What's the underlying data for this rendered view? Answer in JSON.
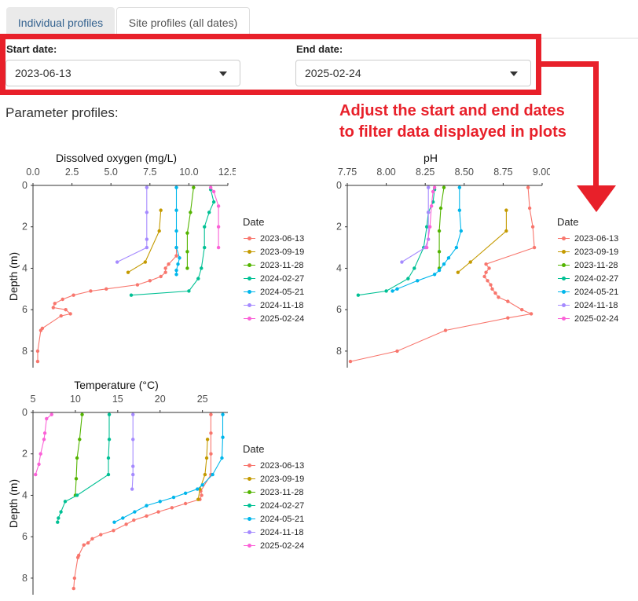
{
  "tabs": [
    {
      "label": "Individual profiles",
      "active": false
    },
    {
      "label": "Site profiles (all dates)",
      "active": true
    }
  ],
  "filters": {
    "start_label": "Start date:",
    "start_value": "2023-06-13",
    "end_label": "End date:",
    "end_value": "2025-02-24"
  },
  "section_title": "Parameter profiles:",
  "annotation": {
    "line1": "Adjust the start and end dates",
    "line2": "to filter data displayed in plots",
    "color": "#e8202a"
  },
  "legend": {
    "title": "Date",
    "entries": [
      {
        "label": "2023-06-13",
        "color": "#F8766D"
      },
      {
        "label": "2023-09-19",
        "color": "#C49A00"
      },
      {
        "label": "2023-11-28",
        "color": "#53B400"
      },
      {
        "label": "2024-02-27",
        "color": "#00C094"
      },
      {
        "label": "2024-05-21",
        "color": "#00B6EB"
      },
      {
        "label": "2024-11-18",
        "color": "#A58AFF"
      },
      {
        "label": "2025-02-24",
        "color": "#FB61D7"
      }
    ]
  },
  "chart_data": [
    {
      "type": "line",
      "title": "Dissolved oxygen (mg/L)",
      "xlabel": "",
      "ylabel": "Depth (m)",
      "xlim": [
        0,
        12.5
      ],
      "ylim": [
        0,
        8.8
      ],
      "xticks": [
        "0.0",
        "2.5",
        "5.0",
        "7.5",
        "10.0",
        "12.5"
      ],
      "yticks": [
        "0",
        "2",
        "4",
        "6",
        "8"
      ],
      "x_axis_position": "top",
      "y_reversed": true,
      "grid": false,
      "legend_position": "right",
      "series": [
        {
          "name": "2023-06-13",
          "points": [
            [
              9.2,
              3.0
            ],
            [
              9.2,
              3.4
            ],
            [
              8.7,
              3.8
            ],
            [
              8.5,
              4.0
            ],
            [
              8.5,
              4.2
            ],
            [
              8.2,
              4.4
            ],
            [
              7.5,
              4.6
            ],
            [
              6.7,
              4.8
            ],
            [
              4.7,
              5.0
            ],
            [
              3.7,
              5.1
            ],
            [
              2.6,
              5.3
            ],
            [
              1.9,
              5.5
            ],
            [
              1.4,
              5.7
            ],
            [
              1.3,
              5.9
            ],
            [
              2.1,
              6.0
            ],
            [
              2.4,
              6.2
            ],
            [
              1.8,
              6.3
            ],
            [
              0.6,
              6.9
            ],
            [
              0.5,
              7.0
            ],
            [
              0.3,
              8.0
            ],
            [
              0.3,
              8.5
            ]
          ]
        },
        {
          "name": "2023-09-19",
          "points": [
            [
              8.2,
              1.2
            ],
            [
              8.1,
              2.2
            ],
            [
              7.2,
              3.7
            ],
            [
              6.1,
              4.2
            ]
          ]
        },
        {
          "name": "2023-11-28",
          "points": [
            [
              10.3,
              0.1
            ],
            [
              10.1,
              1.3
            ],
            [
              9.9,
              2.3
            ],
            [
              9.9,
              3.2
            ],
            [
              9.9,
              4.0
            ]
          ]
        },
        {
          "name": "2024-02-27",
          "points": [
            [
              11.4,
              0.2
            ],
            [
              11.6,
              0.8
            ],
            [
              11.3,
              1.3
            ],
            [
              11.0,
              2.0
            ],
            [
              11.0,
              3.0
            ],
            [
              10.8,
              4.0
            ],
            [
              10.6,
              4.5
            ],
            [
              10.0,
              5.1
            ],
            [
              6.3,
              5.3
            ]
          ]
        },
        {
          "name": "2024-05-21",
          "points": [
            [
              9.2,
              0.1
            ],
            [
              9.2,
              1.2
            ],
            [
              9.2,
              2.2
            ],
            [
              9.2,
              3.0
            ],
            [
              9.4,
              3.5
            ],
            [
              9.3,
              3.8
            ],
            [
              9.2,
              4.1
            ],
            [
              9.2,
              4.3
            ]
          ]
        },
        {
          "name": "2024-11-18",
          "points": [
            [
              7.3,
              0.1
            ],
            [
              7.3,
              1.3
            ],
            [
              7.3,
              2.6
            ],
            [
              7.3,
              3.0
            ],
            [
              5.4,
              3.7
            ]
          ]
        },
        {
          "name": "2025-02-24",
          "points": [
            [
              11.4,
              0.1
            ],
            [
              11.6,
              0.3
            ],
            [
              11.9,
              1.0
            ],
            [
              11.9,
              2.0
            ],
            [
              11.9,
              3.0
            ]
          ]
        }
      ]
    },
    {
      "type": "line",
      "title": "pH",
      "xlabel": "",
      "ylabel": "",
      "xlim": [
        7.75,
        9.0
      ],
      "ylim": [
        0,
        8.8
      ],
      "xticks": [
        "7.75",
        "8.00",
        "8.25",
        "8.50",
        "8.75",
        "9.00"
      ],
      "yticks": [
        "0",
        "2",
        "4",
        "6",
        "8"
      ],
      "x_axis_position": "top",
      "y_reversed": true,
      "grid": false,
      "legend_position": "right",
      "series": [
        {
          "name": "2023-06-13",
          "points": [
            [
              8.91,
              0.1
            ],
            [
              8.92,
              1.1
            ],
            [
              8.94,
              2.0
            ],
            [
              8.95,
              3.0
            ],
            [
              8.64,
              3.8
            ],
            [
              8.66,
              4.0
            ],
            [
              8.64,
              4.2
            ],
            [
              8.63,
              4.4
            ],
            [
              8.65,
              4.6
            ],
            [
              8.67,
              4.8
            ],
            [
              8.68,
              5.0
            ],
            [
              8.7,
              5.2
            ],
            [
              8.72,
              5.4
            ],
            [
              8.78,
              5.6
            ],
            [
              8.87,
              6.0
            ],
            [
              8.93,
              6.2
            ],
            [
              8.78,
              6.4
            ],
            [
              8.38,
              7.0
            ],
            [
              8.07,
              8.0
            ],
            [
              7.77,
              8.5
            ]
          ]
        },
        {
          "name": "2023-09-19",
          "points": [
            [
              8.77,
              1.2
            ],
            [
              8.77,
              2.2
            ],
            [
              8.54,
              3.7
            ],
            [
              8.46,
              4.2
            ]
          ]
        },
        {
          "name": "2023-11-28",
          "points": [
            [
              8.37,
              0.1
            ],
            [
              8.35,
              1.1
            ],
            [
              8.34,
              2.2
            ],
            [
              8.34,
              3.2
            ],
            [
              8.34,
              4.0
            ]
          ]
        },
        {
          "name": "2024-02-27",
          "points": [
            [
              8.31,
              0.2
            ],
            [
              8.3,
              0.8
            ],
            [
              8.27,
              1.3
            ],
            [
              8.26,
              2.0
            ],
            [
              8.24,
              3.0
            ],
            [
              8.18,
              4.0
            ],
            [
              8.14,
              4.5
            ],
            [
              8.0,
              5.1
            ],
            [
              7.82,
              5.3
            ]
          ]
        },
        {
          "name": "2024-05-21",
          "points": [
            [
              8.47,
              0.1
            ],
            [
              8.47,
              1.2
            ],
            [
              8.48,
              2.2
            ],
            [
              8.45,
              3.0
            ],
            [
              8.4,
              3.5
            ],
            [
              8.37,
              3.8
            ],
            [
              8.34,
              4.1
            ],
            [
              8.31,
              4.3
            ],
            [
              8.2,
              4.6
            ],
            [
              8.07,
              5.0
            ],
            [
              8.04,
              5.1
            ]
          ]
        },
        {
          "name": "2024-11-18",
          "points": [
            [
              8.27,
              0.1
            ],
            [
              8.27,
              1.3
            ],
            [
              8.27,
              2.6
            ],
            [
              8.25,
              3.0
            ],
            [
              8.1,
              3.7
            ]
          ]
        },
        {
          "name": "2025-02-24",
          "points": [
            [
              8.31,
              0.1
            ],
            [
              8.3,
              0.3
            ],
            [
              8.29,
              1.0
            ],
            [
              8.28,
              2.0
            ],
            [
              8.26,
              3.0
            ]
          ]
        }
      ]
    },
    {
      "type": "line",
      "title": "Temperature (°C)",
      "xlabel": "",
      "ylabel": "Depth (m)",
      "xlim": [
        5,
        28
      ],
      "ylim": [
        0,
        8.8
      ],
      "xticks": [
        "5",
        "10",
        "15",
        "20",
        "25"
      ],
      "yticks": [
        "0",
        "2",
        "4",
        "6",
        "8"
      ],
      "x_axis_position": "top",
      "y_reversed": true,
      "grid": false,
      "legend_position": "right",
      "series": [
        {
          "name": "2023-06-13",
          "points": [
            [
              26.0,
              0.1
            ],
            [
              26.0,
              1.0
            ],
            [
              26.0,
              2.0
            ],
            [
              26.0,
              3.0
            ],
            [
              24.8,
              3.8
            ],
            [
              24.9,
              4.0
            ],
            [
              24.7,
              4.2
            ],
            [
              23.0,
              4.4
            ],
            [
              21.4,
              4.6
            ],
            [
              19.8,
              4.8
            ],
            [
              18.4,
              5.0
            ],
            [
              16.9,
              5.2
            ],
            [
              16.0,
              5.4
            ],
            [
              14.5,
              5.7
            ],
            [
              13.0,
              5.9
            ],
            [
              12.0,
              6.1
            ],
            [
              11.5,
              6.3
            ],
            [
              11.0,
              6.4
            ],
            [
              10.4,
              6.9
            ],
            [
              10.3,
              7.0
            ],
            [
              9.9,
              8.0
            ],
            [
              9.8,
              8.5
            ]
          ]
        },
        {
          "name": "2023-09-19",
          "points": [
            [
              25.6,
              1.3
            ],
            [
              25.5,
              2.2
            ],
            [
              25.3,
              3.0
            ],
            [
              24.7,
              3.7
            ],
            [
              24.5,
              4.2
            ]
          ]
        },
        {
          "name": "2023-11-28",
          "points": [
            [
              10.8,
              0.1
            ],
            [
              10.5,
              1.3
            ],
            [
              10.2,
              2.2
            ],
            [
              10.1,
              3.2
            ],
            [
              10.0,
              4.0
            ]
          ]
        },
        {
          "name": "2024-02-27",
          "points": [
            [
              14.0,
              0.1
            ],
            [
              14.0,
              1.3
            ],
            [
              13.9,
              2.2
            ],
            [
              13.9,
              3.0
            ],
            [
              10.2,
              4.0
            ],
            [
              8.8,
              4.3
            ],
            [
              8.3,
              4.8
            ],
            [
              8.0,
              5.1
            ],
            [
              7.9,
              5.3
            ]
          ]
        },
        {
          "name": "2024-05-21",
          "points": [
            [
              27.4,
              0.1
            ],
            [
              27.4,
              1.2
            ],
            [
              27.3,
              2.2
            ],
            [
              26.2,
              3.0
            ],
            [
              25.0,
              3.5
            ],
            [
              24.4,
              3.7
            ],
            [
              23.0,
              3.9
            ],
            [
              21.6,
              4.1
            ],
            [
              20.0,
              4.3
            ],
            [
              18.4,
              4.5
            ],
            [
              17.0,
              4.8
            ],
            [
              15.6,
              5.1
            ],
            [
              14.6,
              5.3
            ]
          ]
        },
        {
          "name": "2024-11-18",
          "points": [
            [
              16.8,
              0.1
            ],
            [
              16.8,
              1.3
            ],
            [
              16.8,
              2.6
            ],
            [
              16.8,
              3.0
            ],
            [
              16.7,
              3.7
            ]
          ]
        },
        {
          "name": "2025-02-24",
          "points": [
            [
              7.2,
              0.1
            ],
            [
              6.6,
              0.3
            ],
            [
              6.4,
              1.0
            ],
            [
              6.3,
              1.3
            ],
            [
              5.9,
              2.0
            ],
            [
              5.7,
              2.5
            ],
            [
              5.3,
              3.0
            ]
          ]
        }
      ]
    }
  ]
}
